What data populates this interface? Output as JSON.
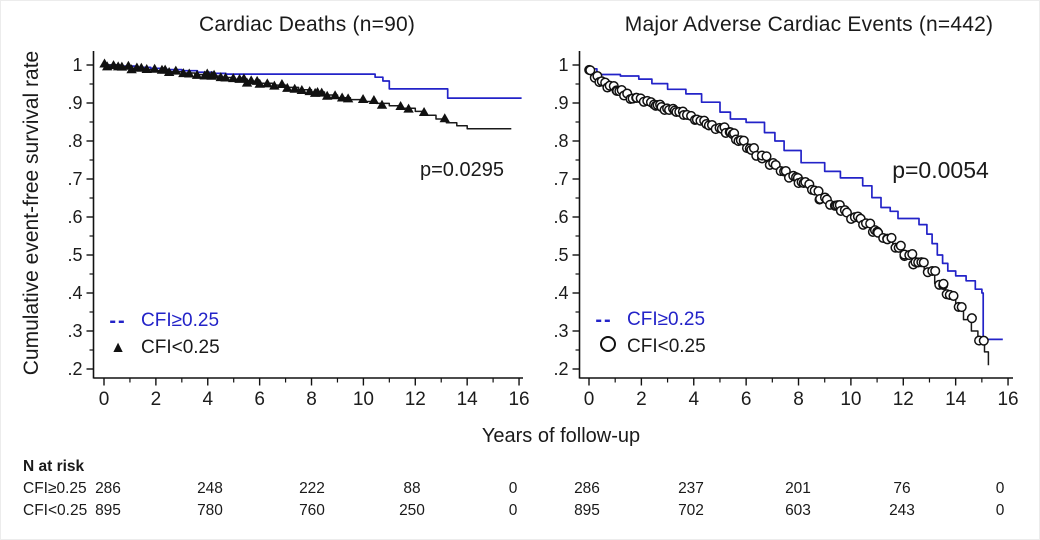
{
  "figure": {
    "y_axis_label": "Cumulative event-free survival rate",
    "x_axis_label": "Years of follow-up",
    "colors": {
      "blue": "#2323c8",
      "black": "#1a1a1a"
    }
  },
  "axes": {
    "x_range": [
      0,
      16
    ],
    "y_range": [
      0.2,
      1.0
    ],
    "grid": false,
    "x_tick_values": [
      0,
      2,
      4,
      6,
      8,
      10,
      12,
      14,
      16
    ],
    "x_tick_labels": [
      "0",
      "2",
      "4",
      "6",
      "8",
      "10",
      "12",
      "14",
      "16"
    ],
    "x_minor_tick_values": [
      1,
      3,
      5,
      7,
      9,
      11,
      13,
      15
    ],
    "y_tick_values": [
      1,
      0.9,
      0.8,
      0.7,
      0.6,
      0.5,
      0.4,
      0.3,
      0.2
    ],
    "y_tick_labels": [
      "1",
      ".9",
      ".8",
      ".7",
      ".6",
      ".5",
      ".4",
      ".3",
      ".2"
    ],
    "y_minor_tick_values": [
      0.95,
      0.85,
      0.75,
      0.65,
      0.55,
      0.45,
      0.35,
      0.25
    ]
  },
  "chart_data": [
    {
      "type": "line",
      "subtype": "kaplan-meier-step",
      "title": "Cardiac Deaths (n=90)",
      "p_annotation": "p=0.0295",
      "legend": [
        {
          "label": "CFI≥0.25",
          "glyph": "--",
          "symbol": "blue-dashes",
          "color": "#2323c8"
        },
        {
          "label": "CFI<0.25",
          "glyph": "▲",
          "symbol": "filled-triangle",
          "color": "#1a1a1a"
        }
      ],
      "series": [
        {
          "name": "CFI≥0.25",
          "color": "#2323c8",
          "censor_marker": "none",
          "points": [
            [
              0,
              1.0
            ],
            [
              0.6,
              0.997
            ],
            [
              1.2,
              0.994
            ],
            [
              1.8,
              0.991
            ],
            [
              2.4,
              0.988
            ],
            [
              3.0,
              0.985
            ],
            [
              3.6,
              0.981
            ],
            [
              4.2,
              0.978
            ],
            [
              4.7,
              0.976
            ],
            [
              10.2,
              0.976
            ],
            [
              10.45,
              0.968
            ],
            [
              10.75,
              0.958
            ],
            [
              11.0,
              0.937
            ],
            [
              13.1,
              0.937
            ],
            [
              13.25,
              0.913
            ],
            [
              16.1,
              0.913
            ]
          ]
        },
        {
          "name": "CFI<0.25",
          "color": "#1a1a1a",
          "censor_marker": "filled-triangle",
          "censor_to": 13.9,
          "points": [
            [
              0,
              1.0
            ],
            [
              0.5,
              0.996
            ],
            [
              1,
              0.991
            ],
            [
              1.5,
              0.988
            ],
            [
              2,
              0.985
            ],
            [
              2.5,
              0.982
            ],
            [
              3,
              0.979
            ],
            [
              3.5,
              0.975
            ],
            [
              4,
              0.971
            ],
            [
              4.5,
              0.967
            ],
            [
              5,
              0.962
            ],
            [
              5.5,
              0.957
            ],
            [
              6,
              0.952
            ],
            [
              6.5,
              0.947
            ],
            [
              7,
              0.941
            ],
            [
              7.5,
              0.935
            ],
            [
              8,
              0.929
            ],
            [
              8.5,
              0.921
            ],
            [
              9,
              0.914
            ],
            [
              9.5,
              0.909
            ],
            [
              10,
              0.904
            ],
            [
              10.5,
              0.899
            ],
            [
              11,
              0.893
            ],
            [
              11.5,
              0.886
            ],
            [
              12,
              0.878
            ],
            [
              12.4,
              0.868
            ],
            [
              12.8,
              0.858
            ],
            [
              13.2,
              0.848
            ],
            [
              13.6,
              0.84
            ],
            [
              14.0,
              0.832
            ],
            [
              15.7,
              0.832
            ]
          ]
        }
      ]
    },
    {
      "type": "line",
      "subtype": "kaplan-meier-step",
      "title": "Major Adverse Cardiac Events (n=442)",
      "p_annotation": "p=0.0054",
      "legend": [
        {
          "label": "CFI≥0.25",
          "glyph": "--",
          "symbol": "blue-dashes",
          "color": "#2323c8"
        },
        {
          "label": "CFI<0.25",
          "glyph": "circle",
          "symbol": "open-circle",
          "color": "#1a1a1a"
        }
      ],
      "series": [
        {
          "name": "CFI≥0.25",
          "color": "#2323c8",
          "censor_marker": "none",
          "points": [
            [
              0,
              0.99
            ],
            [
              0.3,
              0.975
            ],
            [
              1.2,
              0.971
            ],
            [
              1.9,
              0.963
            ],
            [
              2.4,
              0.951
            ],
            [
              3.0,
              0.936
            ],
            [
              3.7,
              0.924
            ],
            [
              4.3,
              0.902
            ],
            [
              5.0,
              0.876
            ],
            [
              5.4,
              0.858
            ],
            [
              6.0,
              0.849
            ],
            [
              6.7,
              0.822
            ],
            [
              7.1,
              0.8
            ],
            [
              7.45,
              0.775
            ],
            [
              8.1,
              0.743
            ],
            [
              9.0,
              0.72
            ],
            [
              9.6,
              0.703
            ],
            [
              10.45,
              0.682
            ],
            [
              10.8,
              0.651
            ],
            [
              11.15,
              0.625
            ],
            [
              11.5,
              0.615
            ],
            [
              11.8,
              0.596
            ],
            [
              12.6,
              0.58
            ],
            [
              12.9,
              0.555
            ],
            [
              13.1,
              0.53
            ],
            [
              13.3,
              0.5
            ],
            [
              13.5,
              0.478
            ],
            [
              13.7,
              0.458
            ],
            [
              14.0,
              0.445
            ],
            [
              14.4,
              0.432
            ],
            [
              14.75,
              0.41
            ],
            [
              15.0,
              0.4
            ],
            [
              15.05,
              0.278
            ],
            [
              15.8,
              0.278
            ]
          ]
        },
        {
          "name": "CFI<0.25",
          "color": "#1a1a1a",
          "censor_marker": "open-circle",
          "censor_to": 15.25,
          "points": [
            [
              0,
              0.985
            ],
            [
              0.2,
              0.968
            ],
            [
              0.4,
              0.955
            ],
            [
              0.7,
              0.942
            ],
            [
              1.0,
              0.93
            ],
            [
              1.3,
              0.922
            ],
            [
              1.6,
              0.913
            ],
            [
              2.0,
              0.902
            ],
            [
              2.4,
              0.893
            ],
            [
              2.8,
              0.885
            ],
            [
              3.2,
              0.877
            ],
            [
              3.6,
              0.868
            ],
            [
              4.0,
              0.855
            ],
            [
              4.4,
              0.843
            ],
            [
              4.8,
              0.833
            ],
            [
              5.2,
              0.82
            ],
            [
              5.6,
              0.8
            ],
            [
              6.0,
              0.778
            ],
            [
              6.4,
              0.758
            ],
            [
              6.8,
              0.74
            ],
            [
              7.2,
              0.722
            ],
            [
              7.6,
              0.705
            ],
            [
              8.0,
              0.688
            ],
            [
              8.4,
              0.668
            ],
            [
              8.8,
              0.648
            ],
            [
              9.2,
              0.63
            ],
            [
              9.6,
              0.615
            ],
            [
              10.0,
              0.598
            ],
            [
              10.4,
              0.582
            ],
            [
              10.8,
              0.562
            ],
            [
              11.2,
              0.542
            ],
            [
              11.6,
              0.522
            ],
            [
              12.0,
              0.5
            ],
            [
              12.4,
              0.478
            ],
            [
              12.8,
              0.455
            ],
            [
              13.2,
              0.425
            ],
            [
              13.6,
              0.395
            ],
            [
              14.0,
              0.36
            ],
            [
              14.3,
              0.33
            ],
            [
              14.6,
              0.3
            ],
            [
              14.85,
              0.275
            ],
            [
              15.1,
              0.245
            ],
            [
              15.25,
              0.21
            ]
          ]
        }
      ]
    }
  ],
  "n_at_risk": {
    "header": "N at risk",
    "time_points": [
      0,
      4,
      8,
      12,
      16
    ],
    "rows": [
      {
        "label": "CFI≥0.25",
        "cardiac_deaths": [
          286,
          248,
          222,
          88,
          0
        ],
        "mace": [
          286,
          237,
          201,
          76,
          0
        ]
      },
      {
        "label": "CFI<0.25",
        "cardiac_deaths": [
          895,
          780,
          760,
          250,
          0
        ],
        "mace": [
          895,
          702,
          603,
          243,
          0
        ]
      }
    ]
  }
}
